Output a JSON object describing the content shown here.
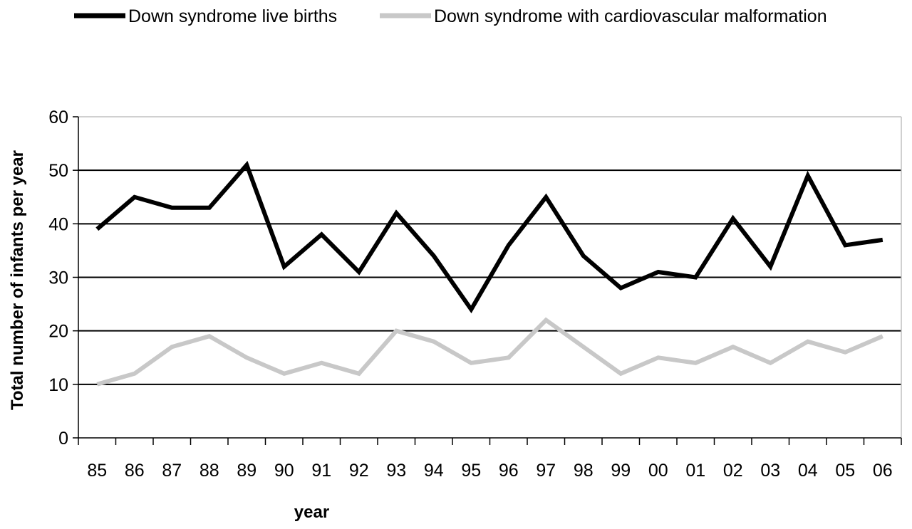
{
  "chart_data": {
    "type": "line",
    "categories": [
      "85",
      "86",
      "87",
      "88",
      "89",
      "90",
      "91",
      "92",
      "93",
      "94",
      "95",
      "96",
      "97",
      "98",
      "99",
      "00",
      "01",
      "02",
      "03",
      "04",
      "05",
      "06"
    ],
    "series": [
      {
        "name": "Down syndrome live births",
        "color": "#000000",
        "values": [
          39,
          45,
          43,
          43,
          51,
          32,
          38,
          31,
          42,
          34,
          24,
          36,
          45,
          34,
          28,
          31,
          30,
          41,
          32,
          49,
          36,
          37
        ]
      },
      {
        "name": "Down syndrome with cardiovascular malformation",
        "color": "#c8c8c8",
        "values": [
          10,
          12,
          17,
          19,
          15,
          12,
          14,
          12,
          20,
          18,
          14,
          15,
          22,
          17,
          12,
          15,
          14,
          17,
          14,
          18,
          16,
          19
        ]
      }
    ],
    "xlabel": "year",
    "ylabel": "Total number of infants per year",
    "ylim": [
      0,
      60
    ],
    "yticks": [
      0,
      10,
      20,
      30,
      40,
      50,
      60
    ],
    "grid": true,
    "legend_position": "top"
  }
}
